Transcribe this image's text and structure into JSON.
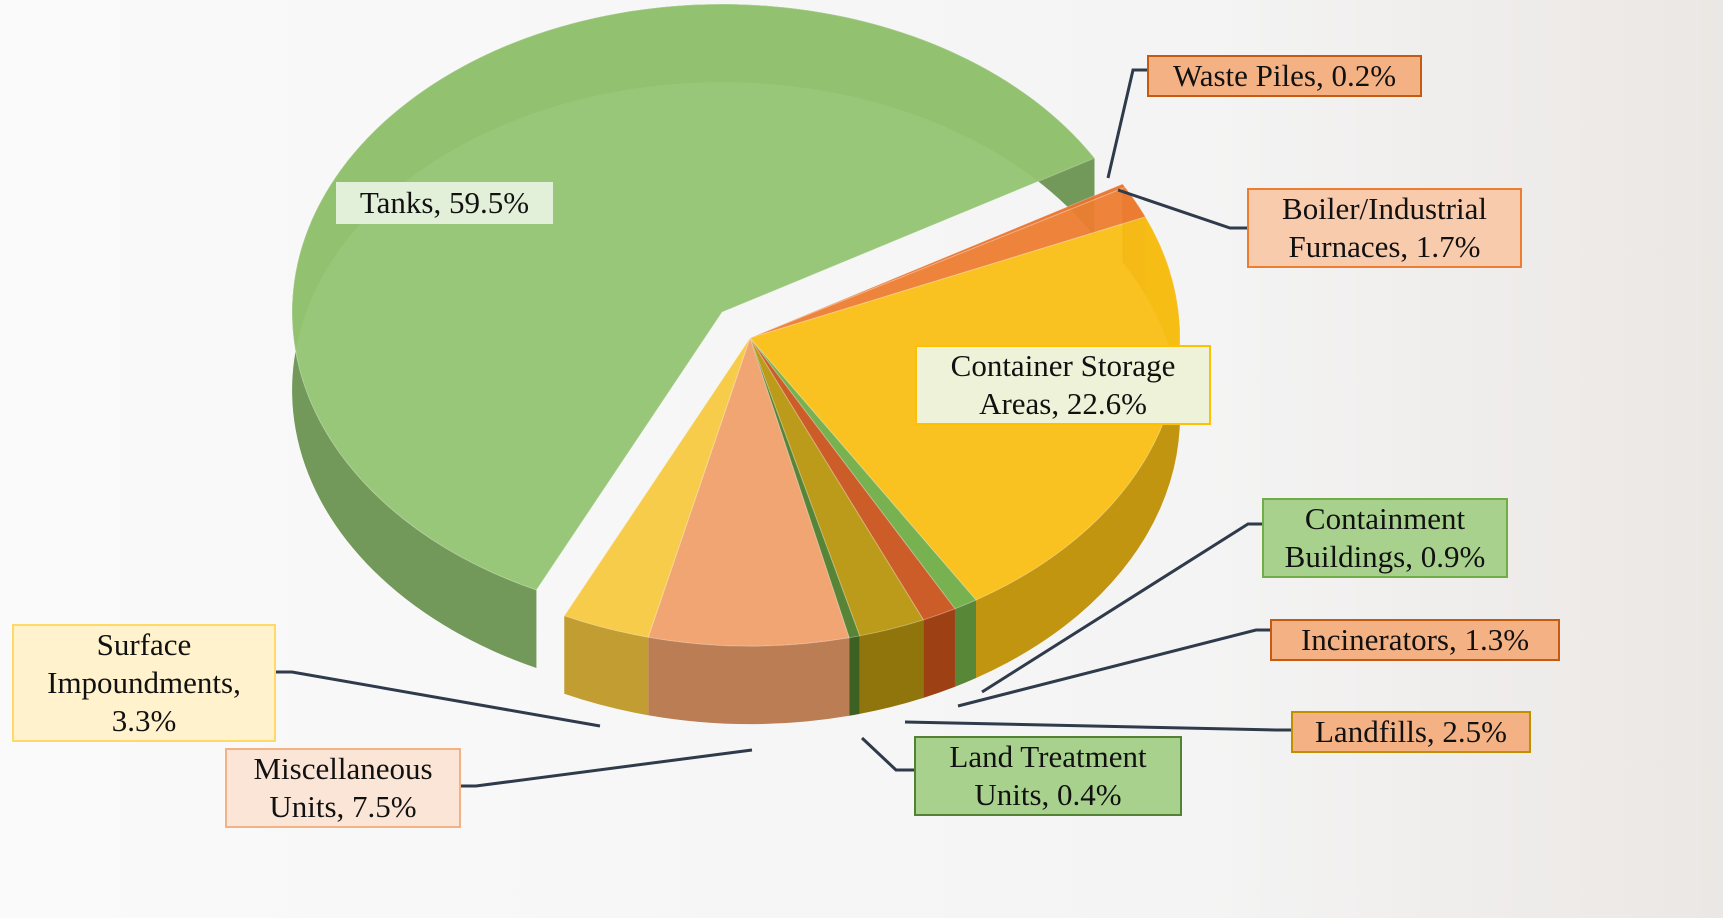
{
  "chart_data": {
    "type": "pie",
    "values": [
      59.5,
      0.2,
      1.7,
      22.6,
      0.9,
      1.3,
      2.5,
      0.4,
      7.5,
      3.3
    ],
    "value_labels": [
      "Tanks, 59.5%",
      "Waste Piles, 0.2%",
      "Boiler/Industrial Furnaces, 1.7%",
      "Container Storage Areas, 22.6%",
      "Containment Buildings, 0.9%",
      "Incinerators, 1.3%",
      "Landfills, 2.5%",
      "Land Treatment Units, 0.4%",
      "Miscellaneous Units, 7.5%",
      "Surface Impoundments, 3.3%"
    ],
    "colors": [
      "#93c472",
      "#e8732d",
      "#ed7d31",
      "#f9bf15",
      "#70ad47",
      "#c9541c",
      "#b8960f",
      "#4f7d2c",
      "#f0a06c",
      "#f8c941"
    ]
  }
}
